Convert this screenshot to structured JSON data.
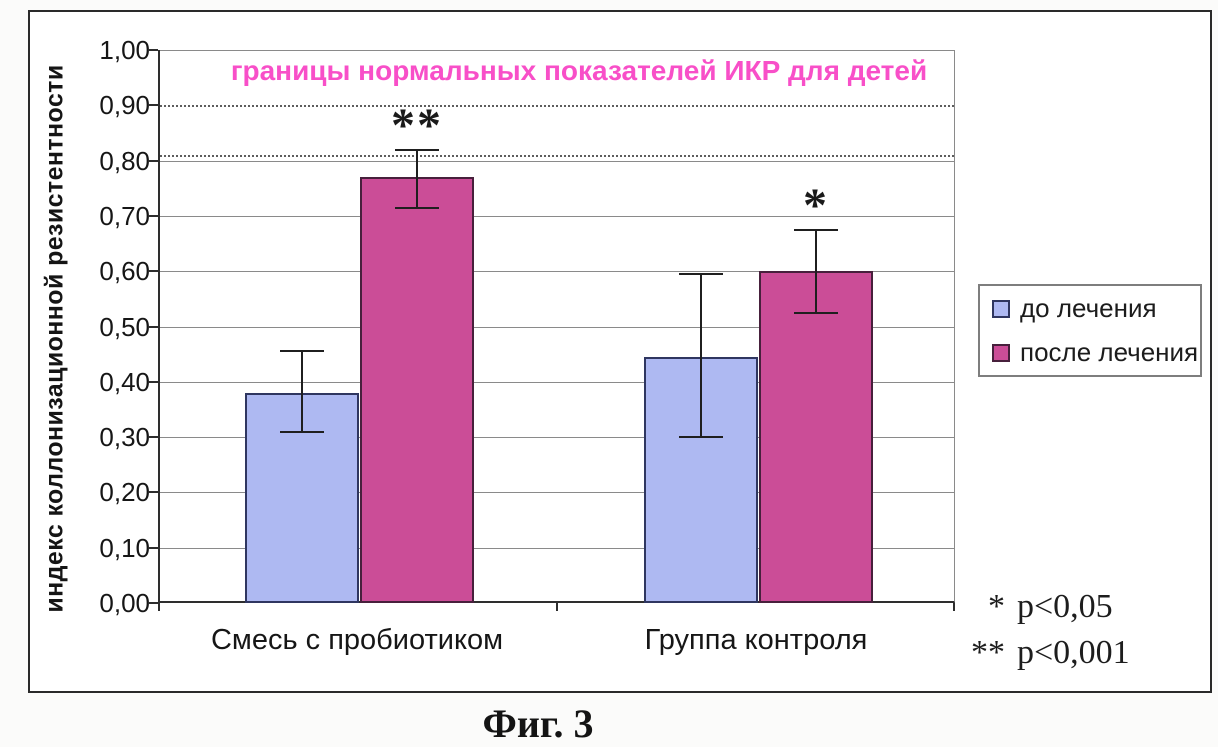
{
  "figure": {
    "caption": "Фиг. 3"
  },
  "chart_data": {
    "type": "bar",
    "title": "",
    "xlabel": "",
    "ylabel": "индекс коллонизационной резистентности",
    "ylim": [
      0,
      1.0
    ],
    "ytick_step": 0.1,
    "ytick_labels": [
      "0,00",
      "0,10",
      "0,20",
      "0,30",
      "0,40",
      "0,50",
      "0,60",
      "0,70",
      "0,80",
      "0,90",
      "1,00"
    ],
    "grid": true,
    "legend_position": "right",
    "categories": [
      "Смесь с пробиотиком",
      "Группа контроля"
    ],
    "series": [
      {
        "name": "до лечения",
        "color": "#aeb9f2",
        "border_color": "#2f3660",
        "values": [
          0.38,
          0.445
        ],
        "error_high": [
          0.455,
          0.595
        ],
        "error_low": [
          0.31,
          0.3
        ],
        "significance": [
          "",
          ""
        ]
      },
      {
        "name": "после лечения",
        "color": "#cb4d97",
        "border_color": "#47203c",
        "values": [
          0.77,
          0.6
        ],
        "error_high": [
          0.82,
          0.675
        ],
        "error_low": [
          0.715,
          0.525
        ],
        "significance": [
          "**",
          "*"
        ]
      }
    ],
    "annotation": {
      "text": "границы нормальных показателей ИКР для детей",
      "color": "#f84fc8"
    },
    "boundary_lines": [
      {
        "value": 0.9,
        "style": "dotted"
      },
      {
        "value": 0.81,
        "style": "dotted"
      }
    ]
  },
  "notes": [
    {
      "star": "*",
      "text": "p<0,05"
    },
    {
      "star": "**",
      "text": "p<0,001"
    }
  ]
}
